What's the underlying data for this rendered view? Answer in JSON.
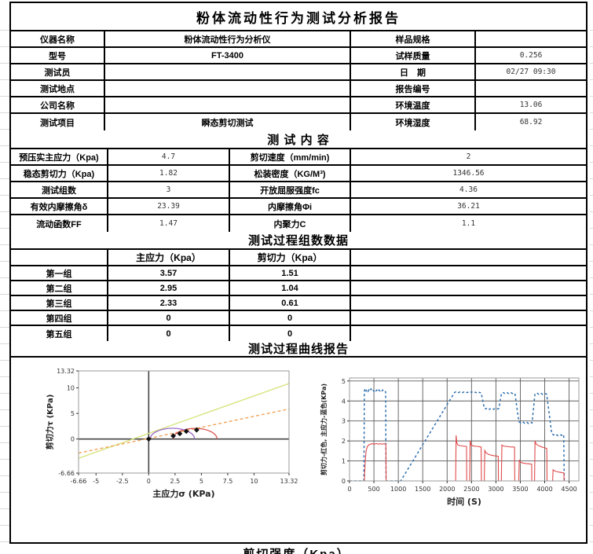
{
  "page": {
    "title": "粉体流动性行为测试分析报告",
    "section1": "测 试 内 容",
    "section2": "测试过程组数数据",
    "section3": "测试过程曲线报告",
    "partial_bottom": "剪切强度（Kpa）"
  },
  "info": {
    "rows": [
      {
        "l1": "仪器名称",
        "v1": "粉体流动性行为分析仪",
        "l2": "样品规格",
        "v2": ""
      },
      {
        "l1": "型号",
        "v1": "FT-3400",
        "l2": "试样质量",
        "v2": "0.256"
      },
      {
        "l1": "测试员",
        "v1": "",
        "l2": "日　期",
        "v2": "02/27 09:30"
      },
      {
        "l1": "测试地点",
        "v1": "",
        "l2": "报告编号",
        "v2": ""
      },
      {
        "l1": "公司名称",
        "v1": "",
        "l2": "环境温度",
        "v2": "13.06"
      },
      {
        "l1": "测试项目",
        "v1": "瞬态剪切测试",
        "l2": "环境湿度",
        "v2": "68.92"
      }
    ]
  },
  "content": {
    "rows": [
      {
        "l1": "预压实主应力（Kpa)",
        "v1": "4.7",
        "l2": "剪切速度（mm/min)",
        "v2": "2"
      },
      {
        "l1": "稳态剪切力（Kpa)",
        "v1": "1.82",
        "l2": "松装密度（KG/M³)",
        "v2": "1346.56"
      },
      {
        "l1": "测试组数",
        "v1": "3",
        "l2": "开放屈服强度fc",
        "v2": "4.36"
      },
      {
        "l1": "有效内摩擦角δ",
        "v1": "23.39",
        "l2": "内摩擦角Φi",
        "v2": "36.21"
      },
      {
        "l1": "流动函数FF",
        "v1": "1.47",
        "l2": "内聚力C",
        "v2": "1.1"
      }
    ]
  },
  "group": {
    "col_header_1": "主应力（Kpa）",
    "col_header_2": "剪切力（Kpa）",
    "rows": [
      {
        "name": "第一组",
        "v1": "3.57",
        "v2": "1.51"
      },
      {
        "name": "第二组",
        "v1": "2.95",
        "v2": "1.04"
      },
      {
        "name": "第三组",
        "v1": "2.33",
        "v2": "0.61"
      },
      {
        "name": "第四组",
        "v1": "0",
        "v2": "0"
      },
      {
        "name": "第五组",
        "v1": "0",
        "v2": "0"
      }
    ]
  },
  "chart_data": [
    {
      "type": "scatter",
      "title": "",
      "xlabel": "主应力σ (KPa)",
      "ylabel": "剪切力τ (KPa)",
      "xlim": [
        -6.66,
        13.32
      ],
      "ylim": [
        -6.66,
        13.32
      ],
      "grid": false,
      "zero_axes": true,
      "legend": "none",
      "xticks": [
        {
          "v": -6.66,
          "t": "-6.66"
        },
        {
          "v": -5,
          "t": "-5"
        },
        {
          "v": -2.5,
          "t": "-2.5"
        },
        {
          "v": 0,
          "t": "0"
        },
        {
          "v": 2.5,
          "t": "2.5"
        },
        {
          "v": 5,
          "t": "5"
        },
        {
          "v": 7.5,
          "t": "7.5"
        },
        {
          "v": 10,
          "t": "10"
        },
        {
          "v": 13.32,
          "t": "13.32"
        }
      ],
      "yticks": [
        {
          "v": 13.32,
          "t": "13.32"
        },
        {
          "v": 10,
          "t": "10"
        },
        {
          "v": 5,
          "t": "5"
        },
        {
          "v": 0,
          "t": "0"
        },
        {
          "v": -6.66,
          "t": "-6.66"
        }
      ],
      "lines": [
        {
          "name": "internal-friction-line",
          "slope": 0.732,
          "intercept": 1.1,
          "style": "solid",
          "color": "#d8e47e"
        },
        {
          "name": "effective-friction-line",
          "slope": 0.432,
          "intercept": 0.12,
          "style": "dashed",
          "color": "#f0a356"
        }
      ],
      "circles": [
        {
          "name": "mohr-circle-large",
          "cx": 4.4,
          "r": 2.08,
          "color": "#d94f4f"
        },
        {
          "name": "mohr-circle-small",
          "cx": 2.25,
          "r": 2.1,
          "color": "#9a6bcc"
        }
      ],
      "points": {
        "color": "#111111",
        "values": [
          [
            0,
            0
          ],
          [
            2.33,
            0.61
          ],
          [
            2.95,
            1.04
          ],
          [
            3.57,
            1.51
          ],
          [
            4.55,
            1.78
          ]
        ]
      }
    },
    {
      "type": "line",
      "title": "",
      "xlabel": "时间 (S)",
      "ylabel": "剪切力-红色, 主应力-蓝色(KPa)",
      "xlim": [
        0,
        4700
      ],
      "ylim": [
        0,
        5.15
      ],
      "grid": true,
      "zero_axes": false,
      "legend": "none",
      "xticks": [
        {
          "v": 0,
          "t": "0"
        },
        {
          "v": 500,
          "t": "500"
        },
        {
          "v": 1000,
          "t": "1000"
        },
        {
          "v": 1500,
          "t": "1500"
        },
        {
          "v": 2000,
          "t": "2000"
        },
        {
          "v": 2500,
          "t": "2500"
        },
        {
          "v": 3000,
          "t": "3000"
        },
        {
          "v": 3500,
          "t": "3500"
        },
        {
          "v": 4000,
          "t": "4000"
        },
        {
          "v": 4500,
          "t": "4500"
        }
      ],
      "yticks": [
        {
          "v": 0,
          "t": "0"
        },
        {
          "v": 1,
          "t": "1"
        },
        {
          "v": 2,
          "t": "2"
        },
        {
          "v": 3,
          "t": "3"
        },
        {
          "v": 4,
          "t": "4"
        },
        {
          "v": 5,
          "t": "5"
        }
      ],
      "series": [
        {
          "name": "principal-stress-blue",
          "color": "#2f6fae",
          "dash": true,
          "points": [
            [
              0,
              0
            ],
            [
              295,
              0
            ],
            [
              305,
              4.5
            ],
            [
              320,
              4.62
            ],
            [
              340,
              4.5
            ],
            [
              360,
              4.58
            ],
            [
              380,
              4.48
            ],
            [
              400,
              4.56
            ],
            [
              420,
              4.5
            ],
            [
              440,
              4.6
            ],
            [
              460,
              4.5
            ],
            [
              480,
              4.55
            ],
            [
              500,
              4.48
            ],
            [
              520,
              4.56
            ],
            [
              540,
              4.5
            ],
            [
              560,
              4.54
            ],
            [
              580,
              4.47
            ],
            [
              600,
              4.55
            ],
            [
              620,
              4.5
            ],
            [
              640,
              4.53
            ],
            [
              660,
              4.47
            ],
            [
              680,
              4.55
            ],
            [
              700,
              4.5
            ],
            [
              720,
              4.52
            ],
            [
              740,
              4.45
            ],
            [
              748,
              0
            ],
            [
              1050,
              0
            ],
            [
              2150,
              4.42
            ],
            [
              2180,
              4.46
            ],
            [
              2220,
              4.4
            ],
            [
              2260,
              4.45
            ],
            [
              2300,
              4.39
            ],
            [
              2340,
              4.45
            ],
            [
              2380,
              4.4
            ],
            [
              2420,
              4.44
            ],
            [
              2460,
              4.39
            ],
            [
              2500,
              4.46
            ],
            [
              2540,
              4.4
            ],
            [
              2580,
              4.44
            ],
            [
              2620,
              4.38
            ],
            [
              2660,
              4.43
            ],
            [
              2700,
              4.4
            ],
            [
              2760,
              3.65
            ],
            [
              2790,
              3.6
            ],
            [
              2830,
              3.66
            ],
            [
              2870,
              3.58
            ],
            [
              2910,
              3.64
            ],
            [
              2950,
              3.58
            ],
            [
              2990,
              3.64
            ],
            [
              3030,
              3.6
            ],
            [
              3060,
              3.62
            ],
            [
              3115,
              4.38
            ],
            [
              3150,
              4.42
            ],
            [
              3190,
              4.36
            ],
            [
              3230,
              4.42
            ],
            [
              3270,
              4.35
            ],
            [
              3310,
              4.41
            ],
            [
              3350,
              4.36
            ],
            [
              3390,
              4.38
            ],
            [
              3470,
              2.96
            ],
            [
              3510,
              2.9
            ],
            [
              3550,
              2.96
            ],
            [
              3590,
              2.88
            ],
            [
              3630,
              2.94
            ],
            [
              3670,
              2.87
            ],
            [
              3710,
              2.93
            ],
            [
              3740,
              2.9
            ],
            [
              3800,
              4.36
            ],
            [
              3840,
              4.4
            ],
            [
              3880,
              4.33
            ],
            [
              3920,
              4.39
            ],
            [
              3960,
              4.33
            ],
            [
              4000,
              4.38
            ],
            [
              4040,
              4.34
            ],
            [
              4145,
              2.36
            ],
            [
              4185,
              2.3
            ],
            [
              4225,
              2.35
            ],
            [
              4265,
              2.27
            ],
            [
              4305,
              2.33
            ],
            [
              4345,
              2.28
            ],
            [
              4390,
              2.32
            ],
            [
              4400,
              0
            ]
          ]
        },
        {
          "name": "shear-force-red",
          "color": "#e04b4b",
          "dash": false,
          "points": [
            [
              0,
              0
            ],
            [
              305,
              0
            ],
            [
              320,
              0.9
            ],
            [
              340,
              1.5
            ],
            [
              365,
              1.72
            ],
            [
              395,
              1.8
            ],
            [
              430,
              1.84
            ],
            [
              470,
              1.86
            ],
            [
              510,
              1.84
            ],
            [
              550,
              1.87
            ],
            [
              590,
              1.84
            ],
            [
              630,
              1.86
            ],
            [
              670,
              1.84
            ],
            [
              710,
              1.86
            ],
            [
              745,
              1.84
            ],
            [
              750,
              0
            ],
            [
              2175,
              0
            ],
            [
              2185,
              2.28
            ],
            [
              2200,
              1.9
            ],
            [
              2220,
              1.8
            ],
            [
              2260,
              1.77
            ],
            [
              2300,
              1.75
            ],
            [
              2340,
              1.74
            ],
            [
              2380,
              1.73
            ],
            [
              2398,
              1.72
            ],
            [
              2402,
              0
            ],
            [
              2462,
              0
            ],
            [
              2472,
              2.02
            ],
            [
              2490,
              1.8
            ],
            [
              2520,
              1.76
            ],
            [
              2560,
              1.74
            ],
            [
              2600,
              1.73
            ],
            [
              2640,
              1.72
            ],
            [
              2680,
              1.7
            ],
            [
              2698,
              1.7
            ],
            [
              2702,
              0
            ],
            [
              2762,
              0
            ],
            [
              2772,
              1.52
            ],
            [
              2800,
              1.4
            ],
            [
              2840,
              1.34
            ],
            [
              2880,
              1.3
            ],
            [
              2920,
              1.28
            ],
            [
              2960,
              1.26
            ],
            [
              3000,
              1.25
            ],
            [
              3048,
              1.23
            ],
            [
              3052,
              0
            ],
            [
              3112,
              0
            ],
            [
              3122,
              1.8
            ],
            [
              3150,
              1.75
            ],
            [
              3190,
              1.73
            ],
            [
              3230,
              1.72
            ],
            [
              3270,
              1.71
            ],
            [
              3310,
              1.7
            ],
            [
              3350,
              1.7
            ],
            [
              3382,
              1.69
            ],
            [
              3386,
              0
            ],
            [
              3468,
              0
            ],
            [
              3478,
              1.05
            ],
            [
              3500,
              0.95
            ],
            [
              3540,
              0.9
            ],
            [
              3580,
              0.88
            ],
            [
              3620,
              0.87
            ],
            [
              3660,
              0.86
            ],
            [
              3700,
              0.85
            ],
            [
              3732,
              0.84
            ],
            [
              3736,
              0
            ],
            [
              3792,
              0
            ],
            [
              3802,
              2.0
            ],
            [
              3825,
              1.85
            ],
            [
              3860,
              1.78
            ],
            [
              3900,
              1.74
            ],
            [
              3940,
              1.7
            ],
            [
              3980,
              1.67
            ],
            [
              4020,
              1.64
            ],
            [
              4044,
              1.62
            ],
            [
              4048,
              0
            ],
            [
              4162,
              0
            ],
            [
              4172,
              0.56
            ],
            [
              4200,
              0.5
            ],
            [
              4240,
              0.47
            ],
            [
              4280,
              0.45
            ],
            [
              4320,
              0.43
            ],
            [
              4360,
              0.41
            ],
            [
              4392,
              0.4
            ],
            [
              4396,
              0
            ]
          ]
        }
      ]
    }
  ],
  "colors": {
    "border": "#000000",
    "blue_series": "#2f6fae",
    "red_series": "#e04b4b",
    "yellow_line": "#d8e47e",
    "orange_dashed": "#f0a356",
    "circle_red": "#d94f4f",
    "circle_purple": "#9a6bcc"
  }
}
